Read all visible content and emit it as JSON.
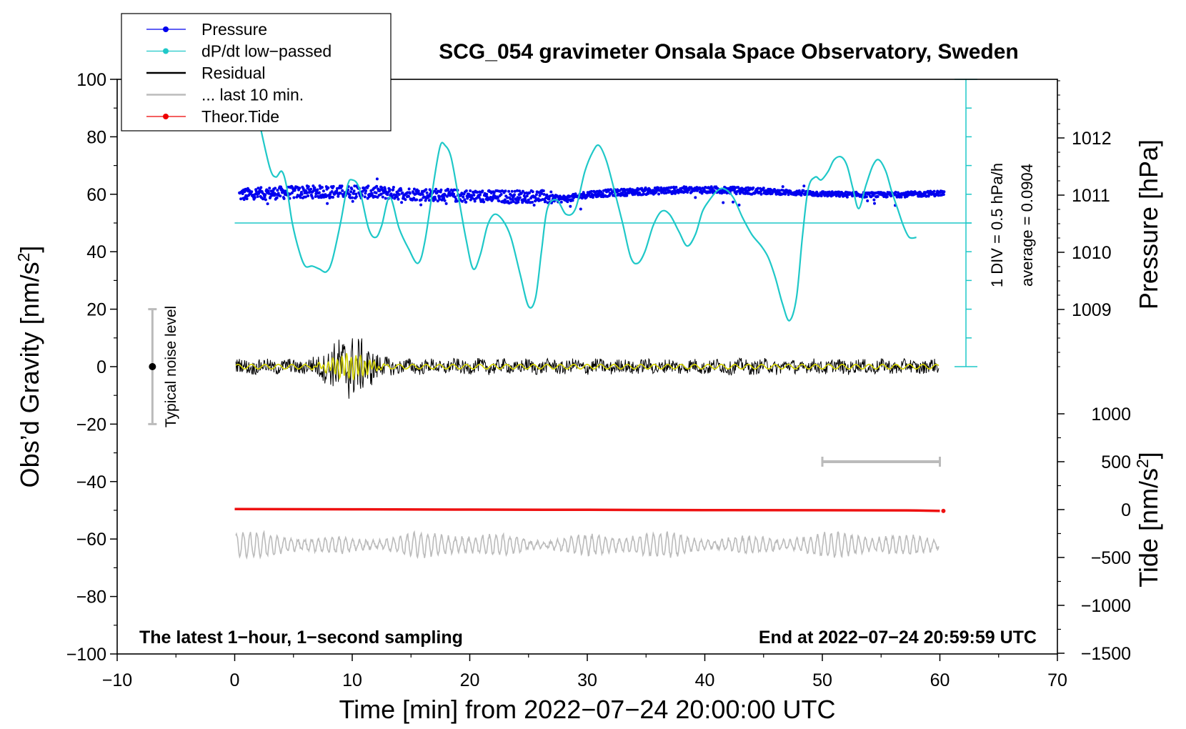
{
  "chart_data": {
    "type": "line",
    "title": "SCG_054 gravimeter Onsala Space Observatory, Sweden",
    "xlabel": "Time [min] from 2022−07−24 20:00:00 UTC",
    "ylabel_left": "Obs’d Gravity [nm/s",
    "ylabel_left_sup": "2",
    "ylabel_left_end": "]",
    "ylabel_right_pressure": "Pressure [hPa]",
    "ylabel_right_tide": "Tide [nm/s",
    "ylabel_right_tide_sup": "2",
    "ylabel_right_tide_end": "]",
    "xlim": [
      -10,
      70
    ],
    "ylim": [
      -100,
      100
    ],
    "pressure_lim": [
      1008,
      1013
    ],
    "tide_lim": [
      -1500,
      1500
    ],
    "x_ticks": [
      -10,
      0,
      10,
      20,
      30,
      40,
      50,
      60,
      70
    ],
    "x_tick_labels": [
      "−10",
      "0",
      "10",
      "20",
      "30",
      "40",
      "50",
      "60",
      "70"
    ],
    "y_ticks": [
      100,
      80,
      60,
      40,
      20,
      0,
      -20,
      -40,
      -60,
      -80,
      -100
    ],
    "y_tick_labels": [
      "100",
      "80",
      "60",
      "40",
      "20",
      "0",
      "−20",
      "−40",
      "−60",
      "−80",
      "−100"
    ],
    "pressure_ticks": [
      1012,
      1011,
      1010,
      1009
    ],
    "pressure_tick_labels": [
      "1012",
      "1011",
      "1010",
      "1009"
    ],
    "tide_ticks": [
      1000,
      500,
      0,
      -500,
      -1000,
      -1500
    ],
    "tide_tick_labels": [
      "1000",
      "500",
      "0",
      "−500",
      "−1000",
      "−1500"
    ],
    "legend": [
      {
        "label": "Pressure",
        "color": "#0000ee",
        "marker": true
      },
      {
        "label": "dP/dt low−passed",
        "color": "#1fc8c8",
        "marker": true
      },
      {
        "label": "Residual",
        "color": "#000000",
        "marker": false
      },
      {
        "label": "... last 10 min.",
        "color": "#bbbbbb",
        "marker": false
      },
      {
        "label": "Theor.Tide",
        "color": "#ee0000",
        "marker": true
      }
    ],
    "colors": {
      "pressure": "#0000ee",
      "dpdt": "#1fc8c8",
      "residual": "#000000",
      "residual_filtered": "#d6d600",
      "last10": "#bbbbbb",
      "tide": "#ee1111"
    },
    "dpdt_scale_label": "1 DIV = 0.5 hPa/h",
    "dpdt_average_label": "average = 0.0904",
    "dpdt_zero_level": 50,
    "dpdt_scale_range": [
      0,
      100
    ],
    "noise_label": "Typical noise level",
    "noise_range": [
      -20,
      20
    ],
    "noise_x": -7,
    "last10_range": [
      50,
      60
    ],
    "last10_tide_level": 500,
    "footer_left": "The latest 1−hour, 1−second sampling",
    "footer_right": "End at 2022−07−24 20:59:59 UTC",
    "series": [
      {
        "name": "dP/dt low−passed",
        "axis": "gravity",
        "x": [
          2.2,
          3.0,
          3.5,
          4.0,
          4.4,
          4.9,
          5.5,
          6.0,
          6.6,
          7.2,
          7.8,
          8.3,
          9.0,
          9.6,
          10.0,
          10.6,
          11.4,
          12.0,
          12.5,
          13.2,
          14.0,
          14.8,
          15.6,
          16.2,
          17.0,
          17.5,
          17.9,
          18.4,
          19.0,
          19.7,
          20.3,
          20.9,
          21.5,
          22.1,
          22.8,
          23.5,
          24.3,
          25.0,
          25.6,
          26.1,
          26.6,
          27.4,
          28.2,
          29.0,
          29.8,
          30.5,
          31.0,
          31.6,
          32.2,
          33.0,
          33.7,
          34.3,
          34.9,
          35.6,
          36.3,
          37.0,
          37.8,
          38.5,
          39.2,
          39.8,
          40.4,
          41.0,
          41.6,
          42.4,
          43.2,
          44.0,
          44.8,
          45.4,
          46.0,
          46.6,
          47.2,
          47.8,
          48.3,
          48.8,
          49.4,
          49.9,
          50.5,
          51.0,
          51.6,
          52.1,
          52.6,
          53.1,
          53.7,
          54.3,
          54.8,
          55.4,
          55.9,
          56.4,
          56.9,
          57.4,
          58.0
        ],
        "y": [
          83,
          69,
          66,
          68,
          63,
          50,
          40,
          35,
          35,
          34,
          33,
          37,
          50,
          63,
          65,
          62,
          48,
          45,
          49,
          59,
          48,
          41,
          36,
          44,
          66,
          77,
          77,
          73,
          60,
          44,
          34,
          39,
          49,
          53,
          51,
          45,
          32,
          21,
          24,
          40,
          55,
          58,
          53,
          55,
          68,
          75,
          77,
          72,
          63,
          50,
          38,
          36,
          40,
          49,
          54,
          53,
          47,
          42,
          46,
          54,
          58,
          61,
          62,
          59,
          52,
          46,
          42,
          38,
          31,
          22,
          16,
          24,
          45,
          62,
          66,
          65,
          68,
          72,
          73,
          70,
          62,
          55,
          63,
          70,
          72,
          68,
          61,
          55,
          49,
          45,
          45
        ]
      },
      {
        "name": "Theor.Tide",
        "axis": "tide",
        "x": [
          0,
          10,
          20,
          30,
          40,
          50,
          58,
          60
        ],
        "y": [
          5,
          3,
          0,
          -2,
          -5,
          -7,
          -9,
          -14
        ]
      }
    ]
  }
}
